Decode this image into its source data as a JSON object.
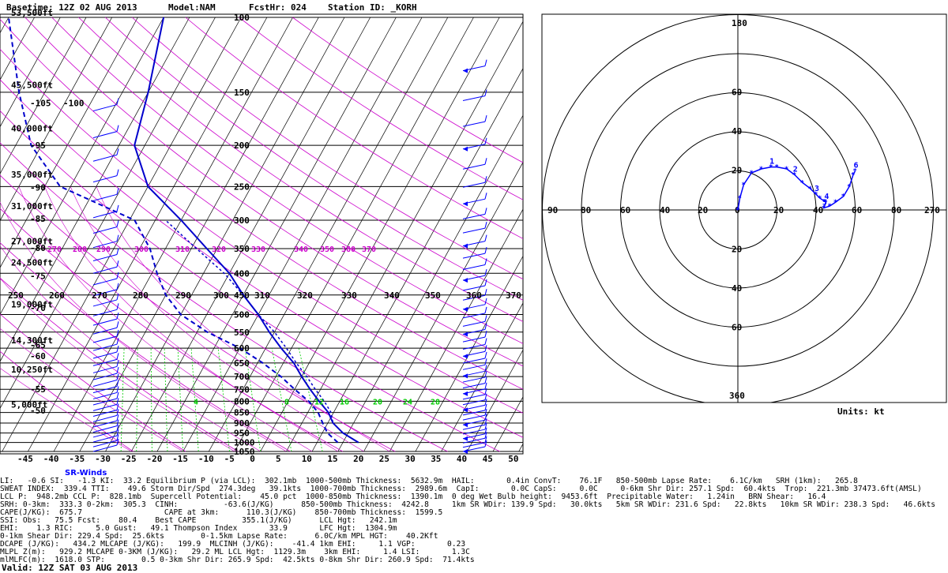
{
  "header": {
    "basetime": "Basetime: 12Z 02 AUG 2013",
    "model": "Model:NAM",
    "fcsthr": "FcstHr: 024",
    "station": "Station ID: _KORH"
  },
  "skewt": {
    "alt_labels": [
      "53,500ft",
      "45,500ft",
      "40,000ft",
      "35,000ft",
      "31,000ft",
      "27,000ft",
      "24,500ft",
      "19,000ft",
      "14,300ft",
      "10,250ft",
      "5,000ft"
    ],
    "pressure_levels": [
      "100",
      "150",
      "200",
      "250",
      "300",
      "350",
      "400",
      "450",
      "500",
      "550",
      "600",
      "650",
      "700",
      "750",
      "800",
      "850",
      "900",
      "950",
      "1000",
      "1050"
    ],
    "theta_top": [
      "270",
      "280",
      "290",
      "300",
      "310",
      "320",
      "330",
      "340",
      "350",
      "360",
      "370"
    ],
    "theta_mid": [
      "250",
      "260",
      "270",
      "280",
      "290",
      "300",
      "310",
      "320",
      "330",
      "340",
      "350",
      "360",
      "370"
    ],
    "temp_axis": [
      "-45",
      "-40",
      "-35",
      "-30",
      "-25",
      "-20",
      "-15",
      "-10",
      "-5",
      "0",
      "5",
      "10",
      "15",
      "20",
      "25",
      "30",
      "35",
      "40",
      "45",
      "50"
    ],
    "left_temps": [
      "-105",
      "-100",
      "-95",
      "-90",
      "-85",
      "-80",
      "-75",
      "-70",
      "-65",
      "-60",
      "-55",
      "-50"
    ],
    "green_labels": [
      "4",
      "8",
      "12",
      "16",
      "20",
      "24",
      "28"
    ],
    "sr_title": "SR-Winds",
    "colors": {
      "temp": "#0000cc",
      "dewpoint": "#0000cc",
      "isotherm": "#000000",
      "dry_adiabat": "#cc00cc",
      "mixing_ratio": "#00cc00",
      "wind": "#0000ff"
    }
  },
  "chart_data": {
    "type": "line",
    "title": "",
    "xlabel": "",
    "ylabel": "",
    "xlim": [
      -45,
      50
    ],
    "ylim_hPa": [
      1050,
      100
    ],
    "series": [
      {
        "x_field": "temp_c",
        "points": [
          {
            "p": 1000,
            "temp_c": 23
          },
          {
            "p": 950,
            "temp_c": 19
          },
          {
            "p": 900,
            "temp_c": 16
          },
          {
            "p": 850,
            "temp_c": 14
          },
          {
            "p": 800,
            "temp_c": 11
          },
          {
            "p": 750,
            "temp_c": 8
          },
          {
            "p": 700,
            "temp_c": 5
          },
          {
            "p": 650,
            "temp_c": 2
          },
          {
            "p": 600,
            "temp_c": -2
          },
          {
            "p": 550,
            "temp_c": -6
          },
          {
            "p": 500,
            "temp_c": -10
          },
          {
            "p": 450,
            "temp_c": -15
          },
          {
            "p": 400,
            "temp_c": -20
          },
          {
            "p": 350,
            "temp_c": -27
          },
          {
            "p": 300,
            "temp_c": -35
          },
          {
            "p": 250,
            "temp_c": -45
          },
          {
            "p": 200,
            "temp_c": -52
          },
          {
            "p": 150,
            "temp_c": -55
          },
          {
            "p": 100,
            "temp_c": -60
          }
        ]
      },
      {
        "x_field": "dewpoint_c",
        "points": [
          {
            "p": 1000,
            "dewpoint_c": 19
          },
          {
            "p": 950,
            "dewpoint_c": 16
          },
          {
            "p": 900,
            "dewpoint_c": 14
          },
          {
            "p": 850,
            "dewpoint_c": 12
          },
          {
            "p": 800,
            "dewpoint_c": 9
          },
          {
            "p": 750,
            "dewpoint_c": 5
          },
          {
            "p": 700,
            "dewpoint_c": 1
          },
          {
            "p": 650,
            "dewpoint_c": -4
          },
          {
            "p": 600,
            "dewpoint_c": -10
          },
          {
            "p": 550,
            "dewpoint_c": -18
          },
          {
            "p": 500,
            "dewpoint_c": -25
          },
          {
            "p": 450,
            "dewpoint_c": -30
          },
          {
            "p": 400,
            "dewpoint_c": -34
          },
          {
            "p": 350,
            "dewpoint_c": -38
          },
          {
            "p": 300,
            "dewpoint_c": -44
          },
          {
            "p": 250,
            "dewpoint_c": -62
          },
          {
            "p": 200,
            "dewpoint_c": -72
          },
          {
            "p": 150,
            "dewpoint_c": -80
          },
          {
            "p": 100,
            "dewpoint_c": -90
          }
        ]
      },
      {
        "x_field": "parcel_c",
        "points": [
          {
            "p": 1000,
            "parcel_c": 23
          },
          {
            "p": 950,
            "parcel_c": 19
          },
          {
            "p": 900,
            "parcel_c": 16
          },
          {
            "p": 850,
            "parcel_c": 14.5
          },
          {
            "p": 800,
            "parcel_c": 12
          },
          {
            "p": 750,
            "parcel_c": 9
          },
          {
            "p": 700,
            "parcel_c": 6
          },
          {
            "p": 650,
            "parcel_c": 2.5
          },
          {
            "p": 600,
            "parcel_c": -1
          },
          {
            "p": 550,
            "parcel_c": -5
          },
          {
            "p": 500,
            "parcel_c": -10
          },
          {
            "p": 450,
            "parcel_c": -15
          },
          {
            "p": 400,
            "parcel_c": -21
          },
          {
            "p": 350,
            "parcel_c": -29
          },
          {
            "p": 300,
            "parcel_c": -38
          }
        ]
      }
    ]
  },
  "hodograph": {
    "top_labels": [
      "180",
      "60",
      "40",
      "20"
    ],
    "bottom_labels": [
      "20",
      "40",
      "60",
      "360"
    ],
    "left_labels": [
      "90",
      "80",
      "60",
      "40",
      "20",
      "0"
    ],
    "right_labels": [
      "20",
      "40",
      "60",
      "80",
      "270"
    ],
    "units": "Units: kt",
    "point_labels": [
      "1",
      "2",
      "3",
      "4",
      "5",
      "6"
    ],
    "hodo_points": [
      {
        "x": 0,
        "y": 0
      },
      {
        "x": 1,
        "y": 6
      },
      {
        "x": 3,
        "y": 13
      },
      {
        "x": 7,
        "y": 19
      },
      {
        "x": 12,
        "y": 21
      },
      {
        "x": 17,
        "y": 22
      },
      {
        "x": 20,
        "y": 22
      },
      {
        "x": 25,
        "y": 21
      },
      {
        "x": 29,
        "y": 18
      },
      {
        "x": 33,
        "y": 14
      },
      {
        "x": 37,
        "y": 11
      },
      {
        "x": 40,
        "y": 8
      },
      {
        "x": 42,
        "y": 6
      },
      {
        "x": 45,
        "y": 4
      },
      {
        "x": 44,
        "y": 1
      },
      {
        "x": 47,
        "y": 2
      },
      {
        "x": 50,
        "y": 4
      },
      {
        "x": 54,
        "y": 7
      },
      {
        "x": 57,
        "y": 12
      },
      {
        "x": 59,
        "y": 18
      },
      {
        "x": 60,
        "y": 20
      }
    ]
  },
  "stats": [
    {
      "row": 0,
      "col": 0,
      "text": "LI:   -0.6 SI:   -1.3 KI:  33.2 Equilibrium P (via LCL):  302.1mb  1000-500mb Thickness:  5632.9m  HAIL:       0.4in ConvT:    76.1F   850-500mb Lapse Rate:    6.1C/km   SRH (1km):   265.8"
    },
    {
      "row": 1,
      "col": 0,
      "text": "SWEAT INDEX:  339.4 TTI:    49.6 Storm Dir/Spd  274.3deg   39.1kts  1000-700mb Thickness:  2989.6m  CapI:       0.0C CapS:     0.0C     0-6km Shr Dir: 257.1 Spd:  60.4kts  Trop:  221.3mb 37473.6ft(AMSL)"
    },
    {
      "row": 2,
      "col": 0,
      "text": "LCL P:  948.2mb CCL P:  828.1mb  Supercell Potential:    45.0 pct  1000-850mb Thickness:  1390.1m  0 deg Wet Bulb height:  9453.6ft  Precipitable Water:   1.24in   BRN Shear:   16.4"
    },
    {
      "row": 3,
      "col": 0,
      "text": "SRH: 0-3km:  333.3 0-2km:  305.3  CINH:          -63.6(J/KG)      850-500mb Thickness:  4242.8     1km SR WDir: 139.9 Spd:   30.0kts   5km SR WDir: 231.6 Spd:   22.8kts   10km SR WDir: 238.3 Spd:   46.6kts"
    },
    {
      "row": 4,
      "col": 0,
      "text": "CAPE(J/KG):  675.7                  CAPE at 3km:      110.3(J/KG)    850-700mb Thickness:  1599.5"
    },
    {
      "row": 5,
      "col": 0,
      "text": "SSI: Obs:   75.5 Fcst:    80.4    Best CAPE          355.1(J/KG)      LCL Hgt:   242.1m"
    },
    {
      "row": 6,
      "col": 0,
      "text": "EHI:    1.3 RIC:     5.0 Gust:   49.1 Thompson Index       33.9       LFC Hgt:  1304.9m"
    },
    {
      "row": 7,
      "col": 0,
      "text": "0-1km Shear Dir: 229.4 Spd:  25.6kts        0-1.5km Lapse Rate:      6.0C/km MPL HGT:    40.2Kft"
    },
    {
      "row": 8,
      "col": 0,
      "text": "DCAPE (J/KG):   434.2 MLCAPE (J/KG):   199.9  MLCINH (J/KG):    -41.4 1km EHI:     1.1 VGP:       0.23"
    },
    {
      "row": 9,
      "col": 0,
      "text": "MLPL Z(m):   929.2 MLCAPE 0-3KM (J/KG):   29.2 ML LCL Hgt:  1129.3m    3km EHI:     1.4 LSI:       1.3C"
    },
    {
      "row": 10,
      "col": 0,
      "text": "mlMLFC(m):  1618.0 STP:        0.5 0-3km Shr Dir: 265.9 Spd:  42.5kts 0-8km Shr Dir: 260.9 Spd:  71.4kts"
    }
  ],
  "valid": "Valid: 12Z SAT 03 AUG 2013"
}
